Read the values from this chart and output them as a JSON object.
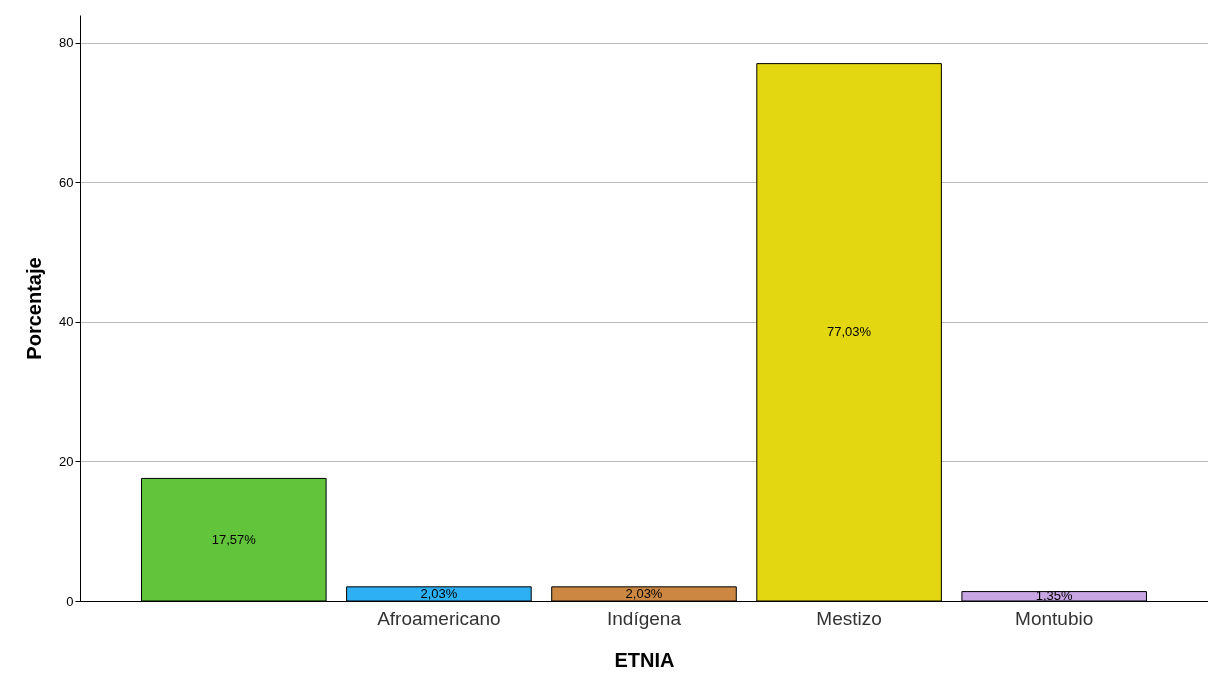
{
  "chart_data": {
    "type": "bar",
    "xlabel": "ETNIA",
    "ylabel": "Porcentaje",
    "categories": [
      null,
      "Afroamericano",
      "Indígena",
      "Mestizo",
      "Montubio"
    ],
    "values": [
      17.57,
      2.03,
      2.03,
      77.03,
      1.35
    ],
    "colors": [
      "#62c43b",
      "#2eb0f5",
      "#cc8743",
      "#e2d710",
      "#c8a5e3"
    ],
    "value_labels": [
      "17,57%",
      "2,03%",
      "2,03%",
      "77,03%",
      "1,35%"
    ],
    "ylim": [
      0,
      84
    ],
    "yticks": [
      0,
      20,
      40,
      60,
      80
    ],
    "grid": "y"
  }
}
